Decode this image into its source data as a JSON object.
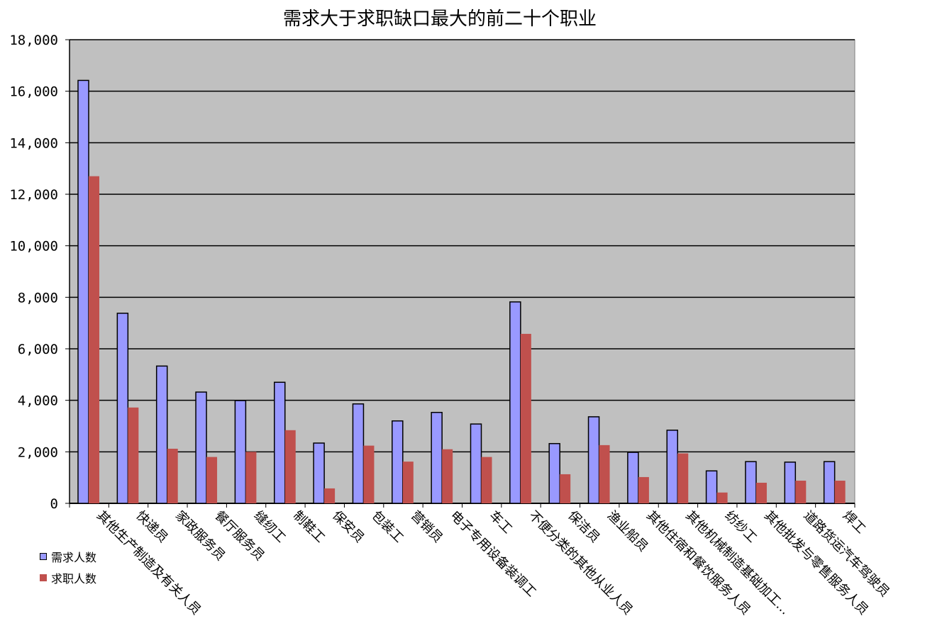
{
  "chart_data": {
    "type": "bar",
    "title": "需求大于求职缺口最大的前二十个职业",
    "categories": [
      "其他生产制造及有关人员",
      "快递员",
      "家政服务员",
      "餐厅服务员",
      "缝纫工",
      "制鞋工",
      "保安员",
      "包装工",
      "营销员",
      "电子专用设备装调工",
      "车工",
      "不便分类的其他从业人员",
      "保洁员",
      "渔业船员",
      "其他住宿和餐饮服务人员",
      "其他机械制造基础加工…",
      "纺纱工",
      "其他批发与零售服务人员",
      "道路货运汽车驾驶员",
      "焊工"
    ],
    "series": [
      {
        "name": "需求人数",
        "color": "#9999ff",
        "values": [
          16420,
          7380,
          5330,
          4320,
          3990,
          4700,
          2340,
          3860,
          3200,
          3530,
          3080,
          7820,
          2320,
          3360,
          1980,
          2840,
          1260,
          1620,
          1600,
          1620
        ]
      },
      {
        "name": "求职人数",
        "color": "#c0504d",
        "values": [
          12700,
          3720,
          2120,
          1800,
          2000,
          2840,
          580,
          2240,
          1620,
          2100,
          1800,
          6580,
          1130,
          2260,
          1020,
          1940,
          420,
          800,
          880,
          880
        ]
      }
    ],
    "ylim": [
      0,
      18000
    ],
    "yticks": [
      "0",
      "2,000",
      "4,000",
      "6,000",
      "8,000",
      "10,000",
      "12,000",
      "14,000",
      "16,000",
      "18,000"
    ],
    "grid": true,
    "legend_position": "bottom-left",
    "plot_background": "#c0c0c0"
  }
}
